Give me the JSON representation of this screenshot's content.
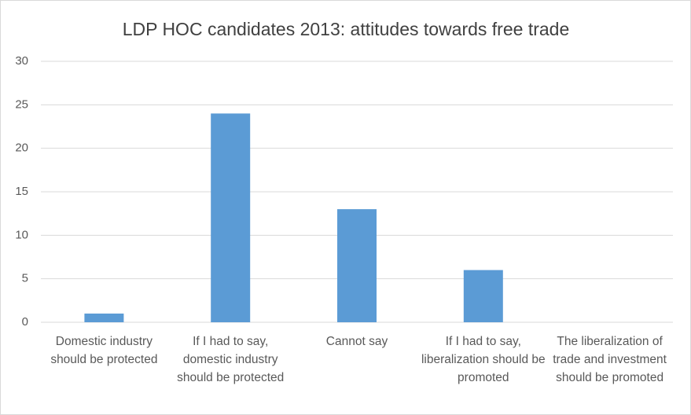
{
  "chart_data": {
    "type": "bar",
    "title": "LDP HOC candidates 2013: attitudes towards free trade",
    "categories": [
      "Domestic industry should be protected",
      "If I had to say, domestic industry should be protected",
      "Cannot say",
      "If I had to say, liberalization should be promoted",
      "The liberalization of trade and investment should be promoted"
    ],
    "values": [
      1,
      24,
      13,
      6,
      0
    ],
    "color": "#5b9bd5",
    "ylim": [
      0,
      30
    ],
    "yticks": [
      0,
      5,
      10,
      15,
      20,
      25,
      30
    ],
    "grid": true
  }
}
